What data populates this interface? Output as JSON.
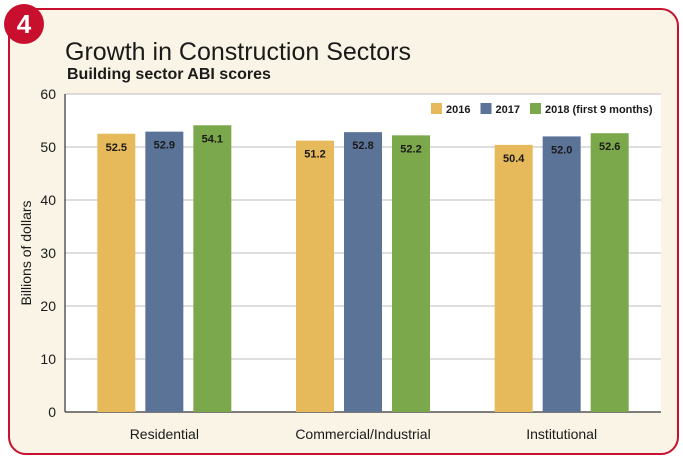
{
  "badge": "4",
  "title": "Growth in Construction Sectors",
  "subtitle": "Building sector ABI scores",
  "chart_data": {
    "type": "bar",
    "title": "Growth in Construction Sectors",
    "subtitle": "Building sector ABI scores",
    "xlabel": "",
    "ylabel": "Billions of dollars",
    "ylim": [
      0,
      60
    ],
    "yticks": [
      0,
      10,
      20,
      30,
      40,
      50,
      60
    ],
    "grid": true,
    "legend_position": "top-right",
    "categories": [
      "Residential",
      "Commercial/Industrial",
      "Institutional"
    ],
    "series": [
      {
        "name": "2016",
        "color": "#e6b95a",
        "values": [
          52.5,
          51.2,
          50.4
        ]
      },
      {
        "name": "2017",
        "color": "#5a7396",
        "values": [
          52.9,
          52.8,
          52.0
        ]
      },
      {
        "name": "2018 (first 9 months)",
        "color": "#7ba84a",
        "values": [
          54.1,
          52.2,
          52.6
        ]
      }
    ],
    "data_labels": [
      [
        "52.5",
        "51.2",
        "50.4"
      ],
      [
        "52.9",
        "52.8",
        "52.0"
      ],
      [
        "54.1",
        "52.2",
        "52.6"
      ]
    ]
  }
}
